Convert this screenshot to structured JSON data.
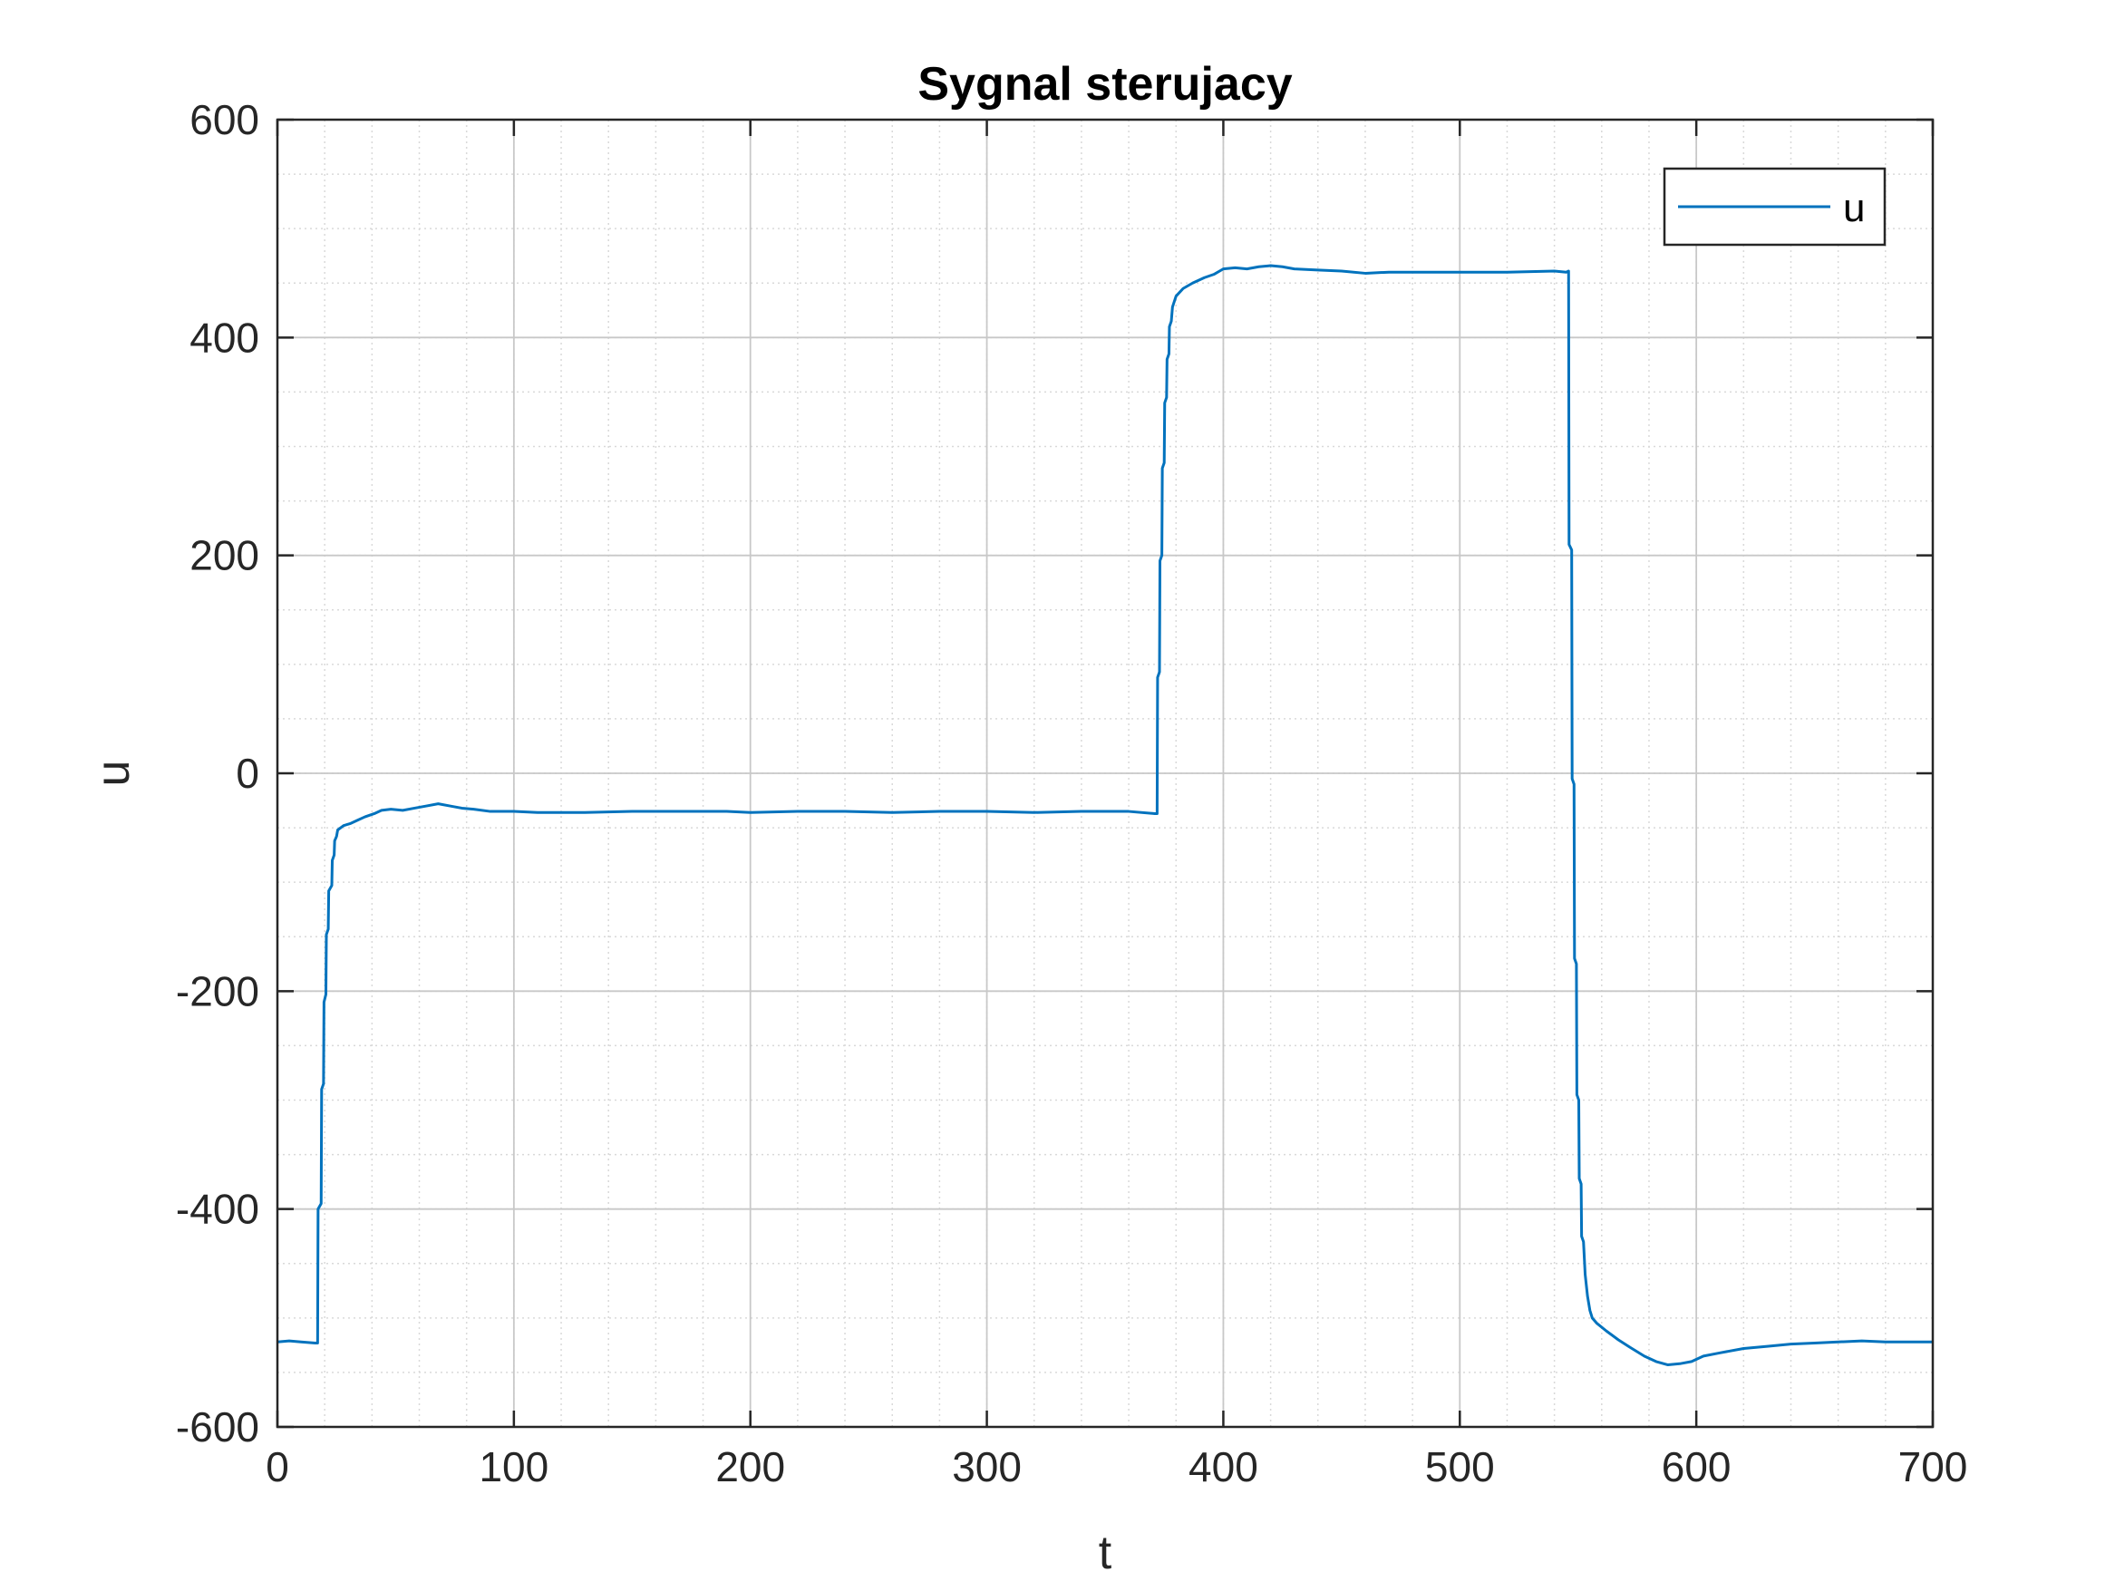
{
  "chart_data": {
    "type": "line",
    "title": "Sygnal sterujacy",
    "xlabel": "t",
    "ylabel": "u",
    "xlim": [
      0,
      700
    ],
    "ylim": [
      -600,
      600
    ],
    "xticks": [
      0,
      100,
      200,
      300,
      400,
      500,
      600,
      700
    ],
    "yticks": [
      -600,
      -400,
      -200,
      0,
      200,
      400,
      600
    ],
    "xtick_labels": [
      "0",
      "100",
      "200",
      "300",
      "400",
      "500",
      "600",
      "700"
    ],
    "ytick_labels": [
      "-600",
      "-400",
      "-200",
      "0",
      "200",
      "400",
      "600"
    ],
    "grid": true,
    "minor_grid": true,
    "legend_position": "top-right",
    "series": [
      {
        "name": "u",
        "color": "#0072BD",
        "points": [
          [
            0,
            -522
          ],
          [
            5,
            -521
          ],
          [
            10,
            -522
          ],
          [
            16,
            -523
          ],
          [
            17,
            -523
          ],
          [
            17.2,
            -400
          ],
          [
            18.5,
            -395
          ],
          [
            18.7,
            -290
          ],
          [
            19.5,
            -285
          ],
          [
            19.7,
            -210
          ],
          [
            20.5,
            -203
          ],
          [
            20.7,
            -148
          ],
          [
            21.5,
            -143
          ],
          [
            21.7,
            -108
          ],
          [
            23,
            -103
          ],
          [
            23.2,
            -80
          ],
          [
            24,
            -75
          ],
          [
            24.2,
            -62
          ],
          [
            25,
            -58
          ],
          [
            25.5,
            -52
          ],
          [
            28,
            -48
          ],
          [
            31,
            -46
          ],
          [
            34,
            -43
          ],
          [
            37,
            -40
          ],
          [
            41,
            -37
          ],
          [
            44,
            -34
          ],
          [
            48,
            -33
          ],
          [
            53,
            -34
          ],
          [
            58,
            -32
          ],
          [
            63,
            -30
          ],
          [
            68,
            -28
          ],
          [
            73,
            -30
          ],
          [
            78,
            -32
          ],
          [
            83,
            -33
          ],
          [
            90,
            -35
          ],
          [
            100,
            -35
          ],
          [
            110,
            -36
          ],
          [
            120,
            -36
          ],
          [
            130,
            -36
          ],
          [
            150,
            -35
          ],
          [
            170,
            -35
          ],
          [
            190,
            -35
          ],
          [
            200,
            -36
          ],
          [
            220,
            -35
          ],
          [
            240,
            -35
          ],
          [
            260,
            -36
          ],
          [
            280,
            -35
          ],
          [
            300,
            -35
          ],
          [
            320,
            -36
          ],
          [
            340,
            -35
          ],
          [
            360,
            -35
          ],
          [
            371,
            -37
          ],
          [
            372,
            -37
          ],
          [
            372.2,
            88
          ],
          [
            373,
            93
          ],
          [
            373.2,
            195
          ],
          [
            374,
            200
          ],
          [
            374.2,
            280
          ],
          [
            375,
            285
          ],
          [
            375.2,
            340
          ],
          [
            376,
            345
          ],
          [
            376.2,
            380
          ],
          [
            377,
            385
          ],
          [
            377.2,
            410
          ],
          [
            378,
            415
          ],
          [
            378.5,
            428
          ],
          [
            380,
            438
          ],
          [
            383,
            445
          ],
          [
            387,
            450
          ],
          [
            392,
            455
          ],
          [
            396,
            458
          ],
          [
            400,
            463
          ],
          [
            405,
            464
          ],
          [
            410,
            463
          ],
          [
            415,
            465
          ],
          [
            420,
            466
          ],
          [
            425,
            465
          ],
          [
            430,
            463
          ],
          [
            440,
            462
          ],
          [
            450,
            461
          ],
          [
            460,
            459
          ],
          [
            470,
            460
          ],
          [
            480,
            460
          ],
          [
            500,
            460
          ],
          [
            520,
            460
          ],
          [
            540,
            461
          ],
          [
            545,
            460
          ],
          [
            546,
            461
          ],
          [
            546.2,
            210
          ],
          [
            547.3,
            205
          ],
          [
            547.5,
            -5
          ],
          [
            548.3,
            -10
          ],
          [
            548.5,
            -170
          ],
          [
            549.3,
            -175
          ],
          [
            549.5,
            -295
          ],
          [
            550.3,
            -300
          ],
          [
            550.5,
            -372
          ],
          [
            551.3,
            -377
          ],
          [
            551.5,
            -425
          ],
          [
            552.3,
            -430
          ],
          [
            553,
            -460
          ],
          [
            554,
            -480
          ],
          [
            555,
            -493
          ],
          [
            556,
            -500
          ],
          [
            558,
            -505
          ],
          [
            562,
            -512
          ],
          [
            567,
            -520
          ],
          [
            572,
            -527
          ],
          [
            578,
            -535
          ],
          [
            583,
            -540
          ],
          [
            588,
            -543
          ],
          [
            593,
            -542
          ],
          [
            598,
            -540
          ],
          [
            603,
            -535
          ],
          [
            610,
            -532
          ],
          [
            620,
            -528
          ],
          [
            630,
            -526
          ],
          [
            640,
            -524
          ],
          [
            650,
            -523
          ],
          [
            660,
            -522
          ],
          [
            670,
            -521
          ],
          [
            680,
            -522
          ],
          [
            690,
            -522
          ],
          [
            700,
            -522
          ]
        ]
      }
    ]
  }
}
